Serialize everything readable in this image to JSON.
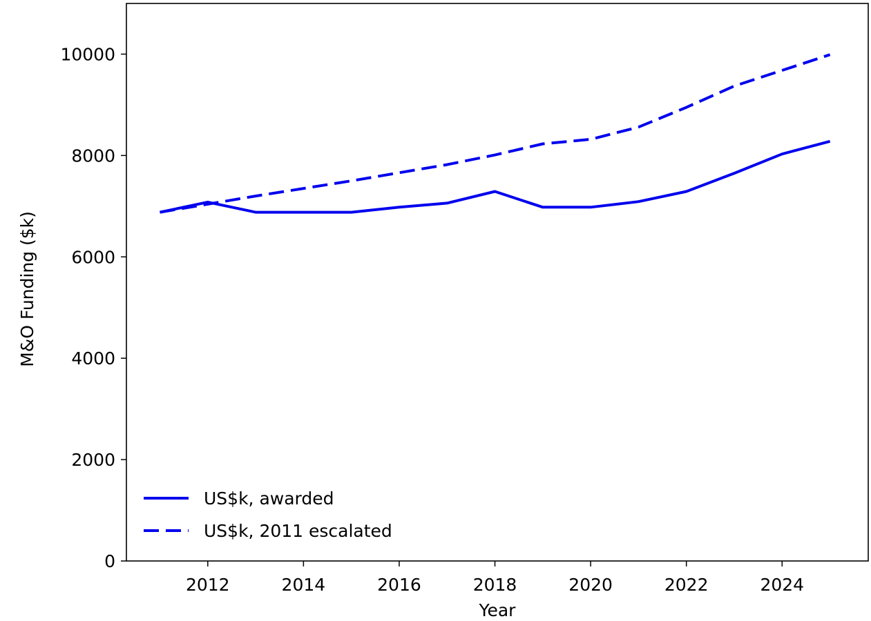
{
  "chart_data": {
    "type": "line",
    "title": "",
    "xlabel": "Year",
    "ylabel": "M&O Funding ($k)",
    "xlim": [
      2010.3,
      2025.8
    ],
    "ylim": [
      0,
      11000
    ],
    "x_ticks": [
      2012,
      2014,
      2016,
      2018,
      2020,
      2022,
      2024
    ],
    "y_ticks": [
      0,
      2000,
      4000,
      6000,
      8000,
      10000
    ],
    "grid": false,
    "legend_position": "lower-left",
    "x": [
      2011,
      2012,
      2013,
      2014,
      2015,
      2016,
      2017,
      2018,
      2019,
      2020,
      2021,
      2022,
      2023,
      2024,
      2025
    ],
    "series": [
      {
        "name": "US$k, awarded",
        "style": "solid",
        "color": "#0000ee",
        "values": [
          6880,
          7080,
          6880,
          6880,
          6880,
          6980,
          7060,
          7290,
          6980,
          6980,
          7090,
          7290,
          7650,
          8030,
          8280
        ]
      },
      {
        "name": "US$k, 2011 escalated",
        "style": "dashed",
        "color": "#0000ee",
        "values": [
          6880,
          7040,
          7200,
          7350,
          7500,
          7660,
          7820,
          8010,
          8230,
          8320,
          8560,
          8950,
          9370,
          9680,
          9990
        ]
      }
    ]
  }
}
